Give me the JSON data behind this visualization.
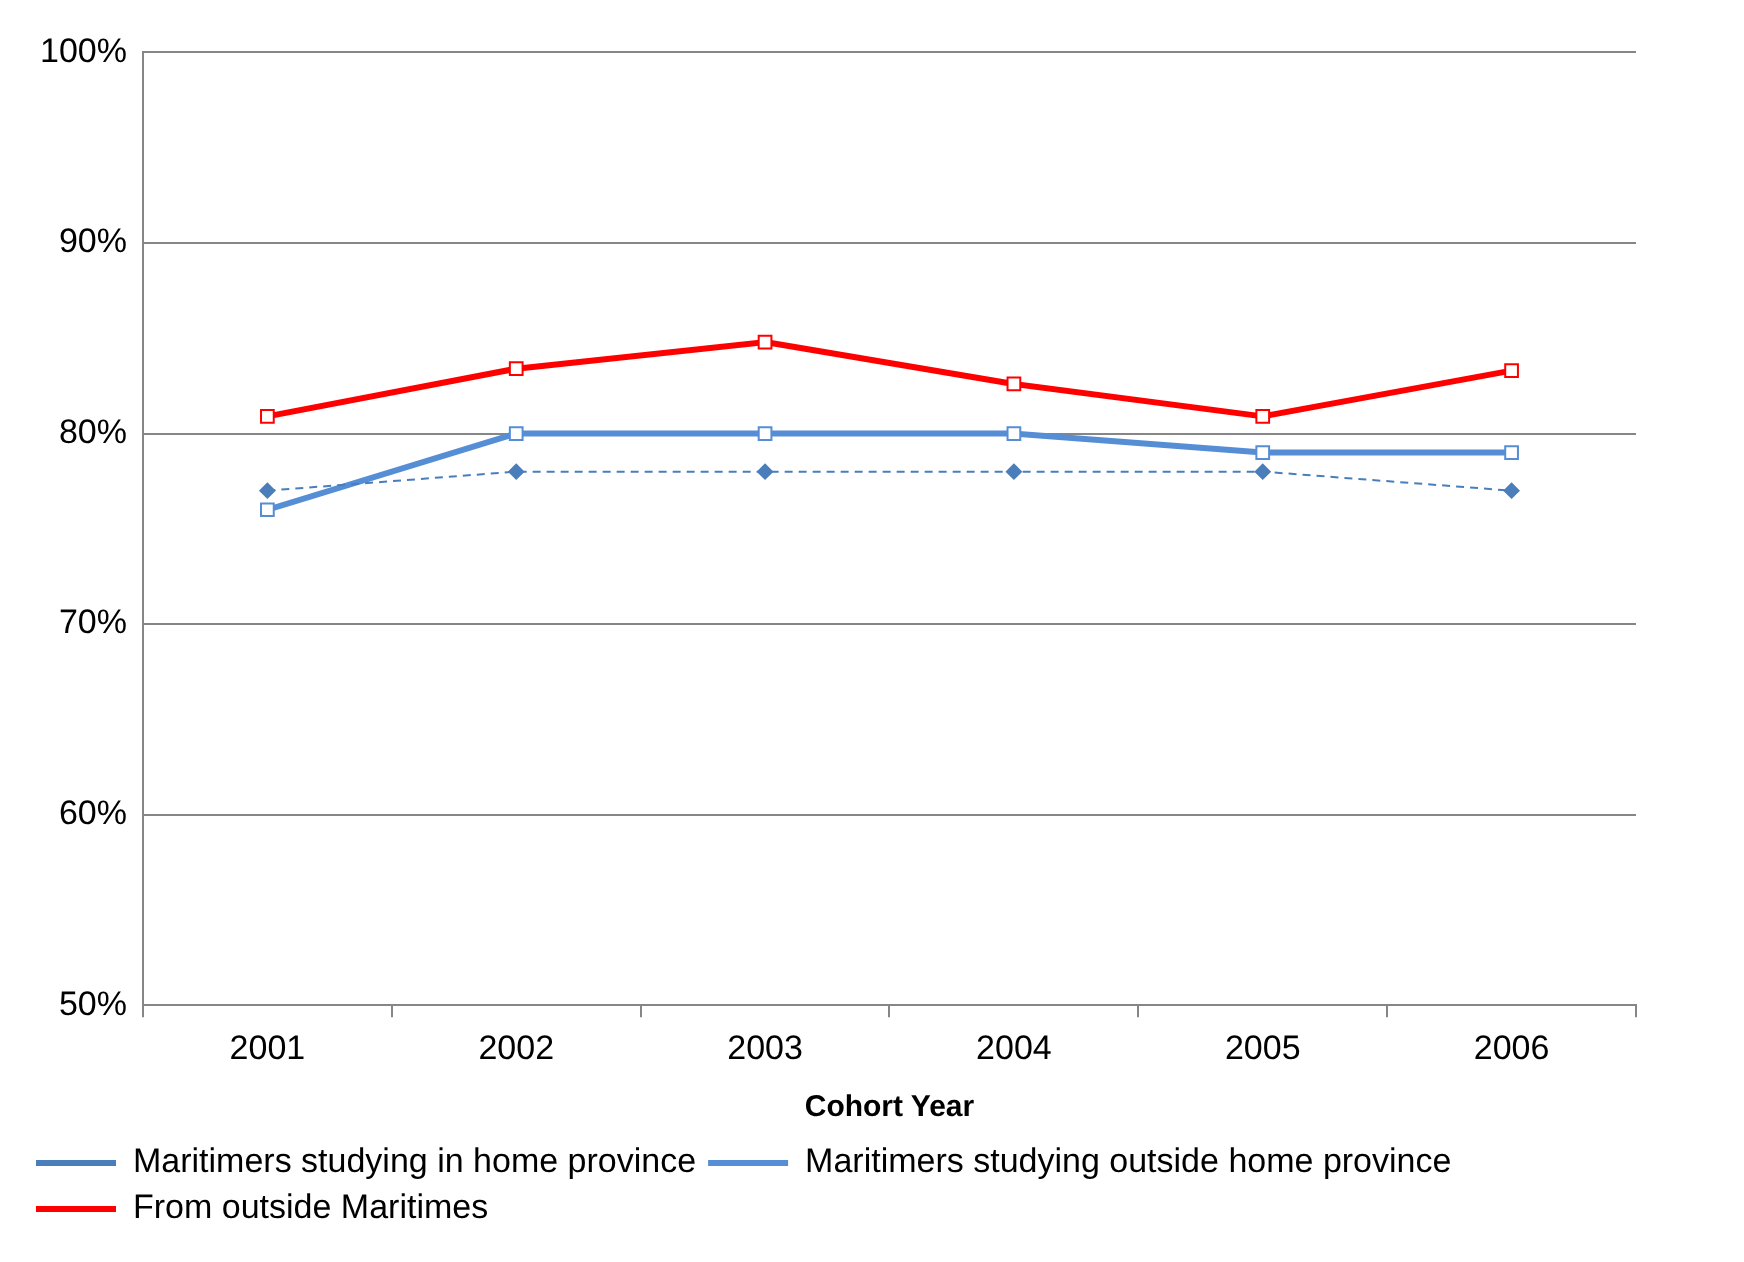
{
  "chart_data": {
    "type": "line",
    "xlabel": "Cohort Year",
    "categories": [
      "2001",
      "2002",
      "2003",
      "2004",
      "2005",
      "2006"
    ],
    "series": [
      {
        "name": "Maritimers studying in home province",
        "color": "#4a7ebb",
        "values": [
          77,
          78,
          78,
          78,
          78,
          77
        ],
        "marker": "diamond",
        "line_style": "dashed"
      },
      {
        "name": "Maritimers studying outside home province",
        "color": "#558ed5",
        "values": [
          76,
          80,
          80,
          80,
          79,
          79
        ],
        "marker": "square",
        "line_style": "solid"
      },
      {
        "name": "From outside Maritimes",
        "color": "#ff0000",
        "values": [
          80.9,
          83.4,
          84.8,
          82.6,
          80.9,
          83.3
        ],
        "marker": "square",
        "line_style": "solid"
      }
    ],
    "ylim": [
      50,
      100
    ],
    "yticks": [
      {
        "value": 50,
        "label": "50%"
      },
      {
        "value": 60,
        "label": "60%"
      },
      {
        "value": 70,
        "label": "70%"
      },
      {
        "value": 80,
        "label": "80%"
      },
      {
        "value": 90,
        "label": "90%"
      },
      {
        "value": 100,
        "label": "100%"
      }
    ],
    "grid": "y",
    "legend": "bottom"
  }
}
